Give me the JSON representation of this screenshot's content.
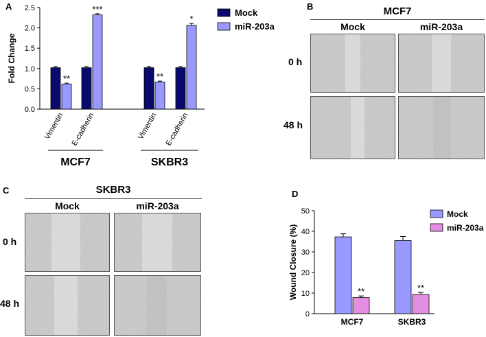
{
  "panels": {
    "A": {
      "letter": "A"
    },
    "B": {
      "letter": "B",
      "title": "MCF7",
      "col_labels": [
        "Mock",
        "miR-203a"
      ],
      "row_labels": [
        "0 h",
        "48 h"
      ]
    },
    "C": {
      "letter": "C",
      "title": "SKBR3",
      "col_labels": [
        "Mock",
        "miR-203a"
      ],
      "row_labels": [
        "0 h",
        "48 h"
      ]
    },
    "D": {
      "letter": "D"
    }
  },
  "colors": {
    "mock_a": "#0a0a6e",
    "mir_a": "#9999ff",
    "mock_d": "#9999ff",
    "mir_d": "#e38ee3"
  },
  "chart_data": [
    {
      "type": "bar",
      "panel": "A",
      "ylabel": "Fold Change",
      "ylim": [
        0,
        2.5
      ],
      "yticks": [
        "0.0",
        "0.5",
        "1.0",
        "1.5",
        "2.0",
        "2.5"
      ],
      "groups": [
        "MCF7",
        "SKBR3"
      ],
      "categories": [
        "Vimentin",
        "E-cadherin",
        "Vimentin",
        "E-cadherin"
      ],
      "legend": "top-right",
      "series": [
        {
          "name": "Mock",
          "values": [
            1.02,
            1.02,
            1.02,
            1.02
          ],
          "errors": [
            0.03,
            0.03,
            0.03,
            0.03
          ],
          "significance": [
            "",
            "",
            "",
            ""
          ]
        },
        {
          "name": "miR-203a",
          "values": [
            0.62,
            2.32,
            0.67,
            2.06
          ],
          "errors": [
            0.02,
            0.03,
            0.02,
            0.05
          ],
          "significance": [
            "**",
            "***",
            "**",
            "*"
          ]
        }
      ]
    },
    {
      "type": "bar",
      "panel": "D",
      "ylabel": "Wound Closure (%)",
      "ylim": [
        0,
        50
      ],
      "yticks": [
        "0",
        "10",
        "20",
        "30",
        "40",
        "50"
      ],
      "categories": [
        "MCF7",
        "SKBR3"
      ],
      "legend": "top-right",
      "series": [
        {
          "name": "Mock",
          "values": [
            37.3,
            35.5
          ],
          "errors": [
            1.5,
            2.0
          ],
          "significance": [
            "",
            ""
          ]
        },
        {
          "name": "miR-203a",
          "values": [
            7.8,
            9.3
          ],
          "errors": [
            0.8,
            1.0
          ],
          "significance": [
            "**",
            "**"
          ]
        }
      ]
    }
  ]
}
